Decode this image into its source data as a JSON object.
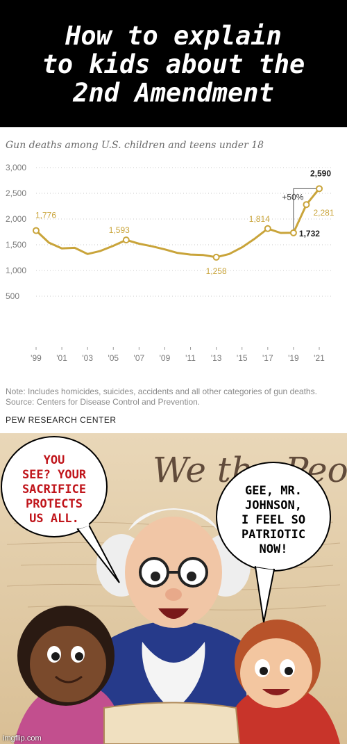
{
  "meme": {
    "title_lines": [
      "How to explain",
      "to kids about the",
      "2nd Amendment"
    ],
    "watermark": "imgflip.com"
  },
  "chart_data": {
    "type": "line",
    "title": "Gun deaths among U.S. children and teens under 18",
    "x": [
      1999,
      2000,
      2001,
      2002,
      2003,
      2004,
      2005,
      2006,
      2007,
      2008,
      2009,
      2010,
      2011,
      2012,
      2013,
      2014,
      2015,
      2016,
      2017,
      2018,
      2019,
      2020,
      2021
    ],
    "series": [
      {
        "values": [
          1776,
          1540,
          1430,
          1440,
          1320,
          1380,
          1480,
          1593,
          1520,
          1470,
          1410,
          1340,
          1310,
          1300,
          1258,
          1320,
          1450,
          1620,
          1814,
          1730,
          1732,
          2281,
          2590
        ]
      }
    ],
    "ylim": [
      0,
      3000
    ],
    "yticks": [
      "3,000",
      "2,500",
      "2,000",
      "1,500",
      "1,000",
      "500"
    ],
    "ytick_values": [
      3000,
      2500,
      2000,
      1500,
      1000,
      500
    ],
    "xticks": [
      "'99",
      "'01",
      "'03",
      "'05",
      "'07",
      "'09",
      "'11",
      "'13",
      "'15",
      "'17",
      "'19",
      "'21"
    ],
    "xtick_values": [
      1999,
      2001,
      2003,
      2005,
      2007,
      2009,
      2011,
      2013,
      2015,
      2017,
      2019,
      2021
    ],
    "data_labels": [
      {
        "x": 1999,
        "text": "1,776"
      },
      {
        "x": 2006,
        "text": "1,593"
      },
      {
        "x": 2013,
        "text": "1,258"
      },
      {
        "x": 2017,
        "text": "1,814"
      },
      {
        "x": 2019,
        "text": "1,732"
      },
      {
        "x": 2020,
        "text": "2,281"
      },
      {
        "x": 2021,
        "text": "2,590"
      }
    ],
    "annotation": "+50%",
    "note": "Note: Includes homicides, suicides, accidents and all other categories of gun deaths.",
    "source": "Source: Centers for Disease Control and Prevention.",
    "publisher": "PEW RESEARCH CENTER",
    "line_color": "#c9a43a",
    "label_color": "#c9a43a",
    "highlight_label_color": "#222222",
    "grid": "dotted"
  },
  "cartoon": {
    "header_script": "We the People",
    "bubble_left": [
      "YOU",
      "SEE? YOUR",
      "SACRIFICE",
      "PROTECTS",
      "US ALL."
    ],
    "bubble_left_color": "#c0151b",
    "bubble_right": [
      "GEE, MR.",
      "JOHNSON,",
      "I FEEL SO",
      "PATRIOTIC",
      "NOW!"
    ],
    "bubble_right_color": "#000000"
  }
}
